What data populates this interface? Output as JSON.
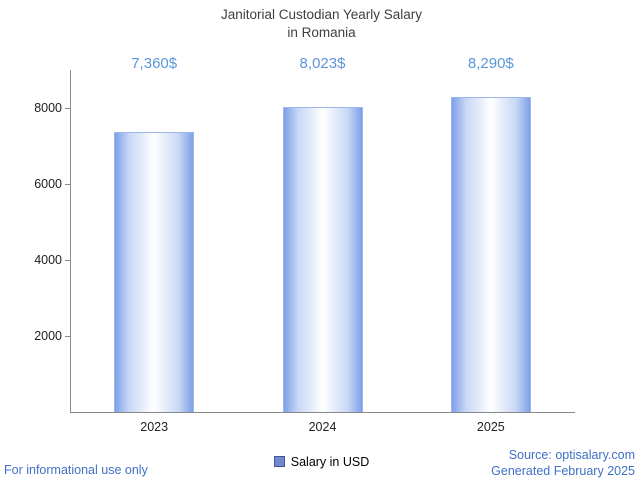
{
  "title": {
    "line1": "Janitorial Custodian Yearly Salary",
    "line2": "in Romania"
  },
  "chart_data": {
    "type": "bar",
    "title": "Janitorial Custodian Yearly Salary in Romania",
    "categories": [
      "2023",
      "2024",
      "2025"
    ],
    "values": [
      7360,
      8023,
      8290
    ],
    "value_labels": [
      "7,360$",
      "8,023$",
      "8,290$"
    ],
    "xlabel": "",
    "ylabel": "",
    "ylim": [
      0,
      9000
    ],
    "yticks": [
      2000,
      4000,
      6000,
      8000
    ],
    "grid": false,
    "legend": {
      "label": "Salary in USD",
      "position": "bottom",
      "swatch_fill": "#7289d0",
      "swatch_border": "#44549a"
    },
    "bar_gradient": {
      "edge": "#7e9fe8",
      "mid": "#c7d7f5",
      "center": "#ffffff"
    }
  },
  "footer": {
    "disclaimer": "For informational use only",
    "source": "Source: optisalary.com",
    "generated": "Generated February 2025"
  },
  "colors": {
    "value_label": "#5b96d8",
    "footer_text": "#4170c8",
    "title_text": "#3f3f3f",
    "axis": "#8a8a8a"
  }
}
